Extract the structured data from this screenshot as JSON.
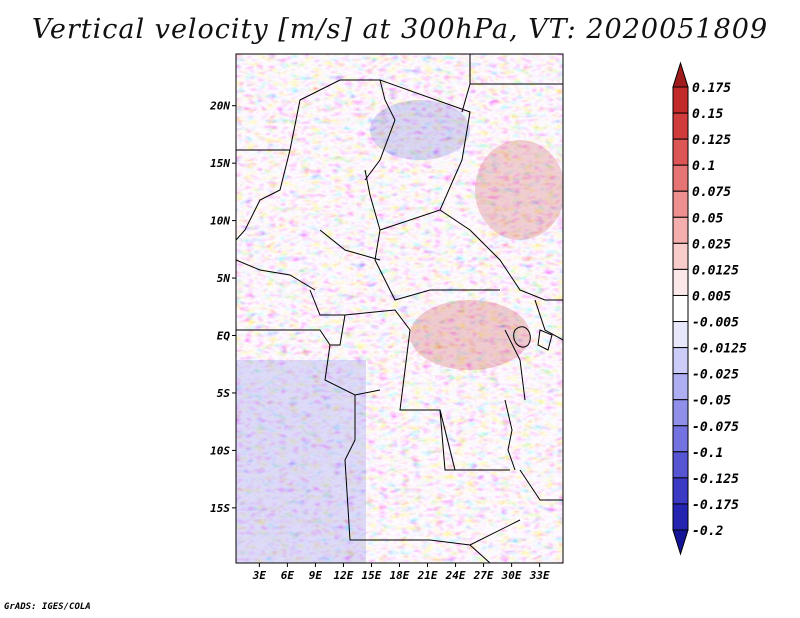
{
  "title": "Vertical velocity [m/s] at 300hPa, VT: 2020051809",
  "map": {
    "lat_labels": [
      {
        "label": "20N",
        "lat": 20
      },
      {
        "label": "15N",
        "lat": 15
      },
      {
        "label": "10N",
        "lat": 10
      },
      {
        "label": "5N",
        "lat": 5
      },
      {
        "label": "EQ",
        "lat": 0
      },
      {
        "label": "5S",
        "lat": -5
      },
      {
        "label": "10S",
        "lat": -10
      },
      {
        "label": "15S",
        "lat": -15
      }
    ],
    "lon_labels": [
      {
        "label": "3E",
        "lon": 3
      },
      {
        "label": "6E",
        "lon": 6
      },
      {
        "label": "9E",
        "lon": 9
      },
      {
        "label": "12E",
        "lon": 12
      },
      {
        "label": "15E",
        "lon": 15
      },
      {
        "label": "18E",
        "lon": 18
      },
      {
        "label": "21E",
        "lon": 21
      },
      {
        "label": "24E",
        "lon": 24
      },
      {
        "label": "27E",
        "lon": 27
      },
      {
        "label": "30E",
        "lon": 30
      },
      {
        "label": "33E",
        "lon": 33
      }
    ],
    "lon_range": [
      0.5,
      35.5
    ],
    "lat_range": [
      -19.8,
      24.5
    ]
  },
  "colorbar": {
    "labels": [
      "0.175",
      "0.15",
      "0.125",
      "0.1",
      "0.075",
      "0.05",
      "0.025",
      "0.0125",
      "0.005",
      "-0.005",
      "-0.0125",
      "-0.025",
      "-0.05",
      "-0.075",
      "-0.1",
      "-0.125",
      "-0.175",
      "-0.2"
    ],
    "colors": [
      "#a01c1c",
      "#c22a2a",
      "#d03c3c",
      "#dc5656",
      "#e67474",
      "#ee9090",
      "#f4aeae",
      "#f9cccc",
      "#fce8e8",
      "#ffffff",
      "#e8e8fc",
      "#ccccf8",
      "#aeaef2",
      "#9090ea",
      "#7272e0",
      "#5656d4",
      "#3a3ac4",
      "#2424b0",
      "#141498"
    ]
  },
  "credit": "GrADS: IGES/COLA"
}
